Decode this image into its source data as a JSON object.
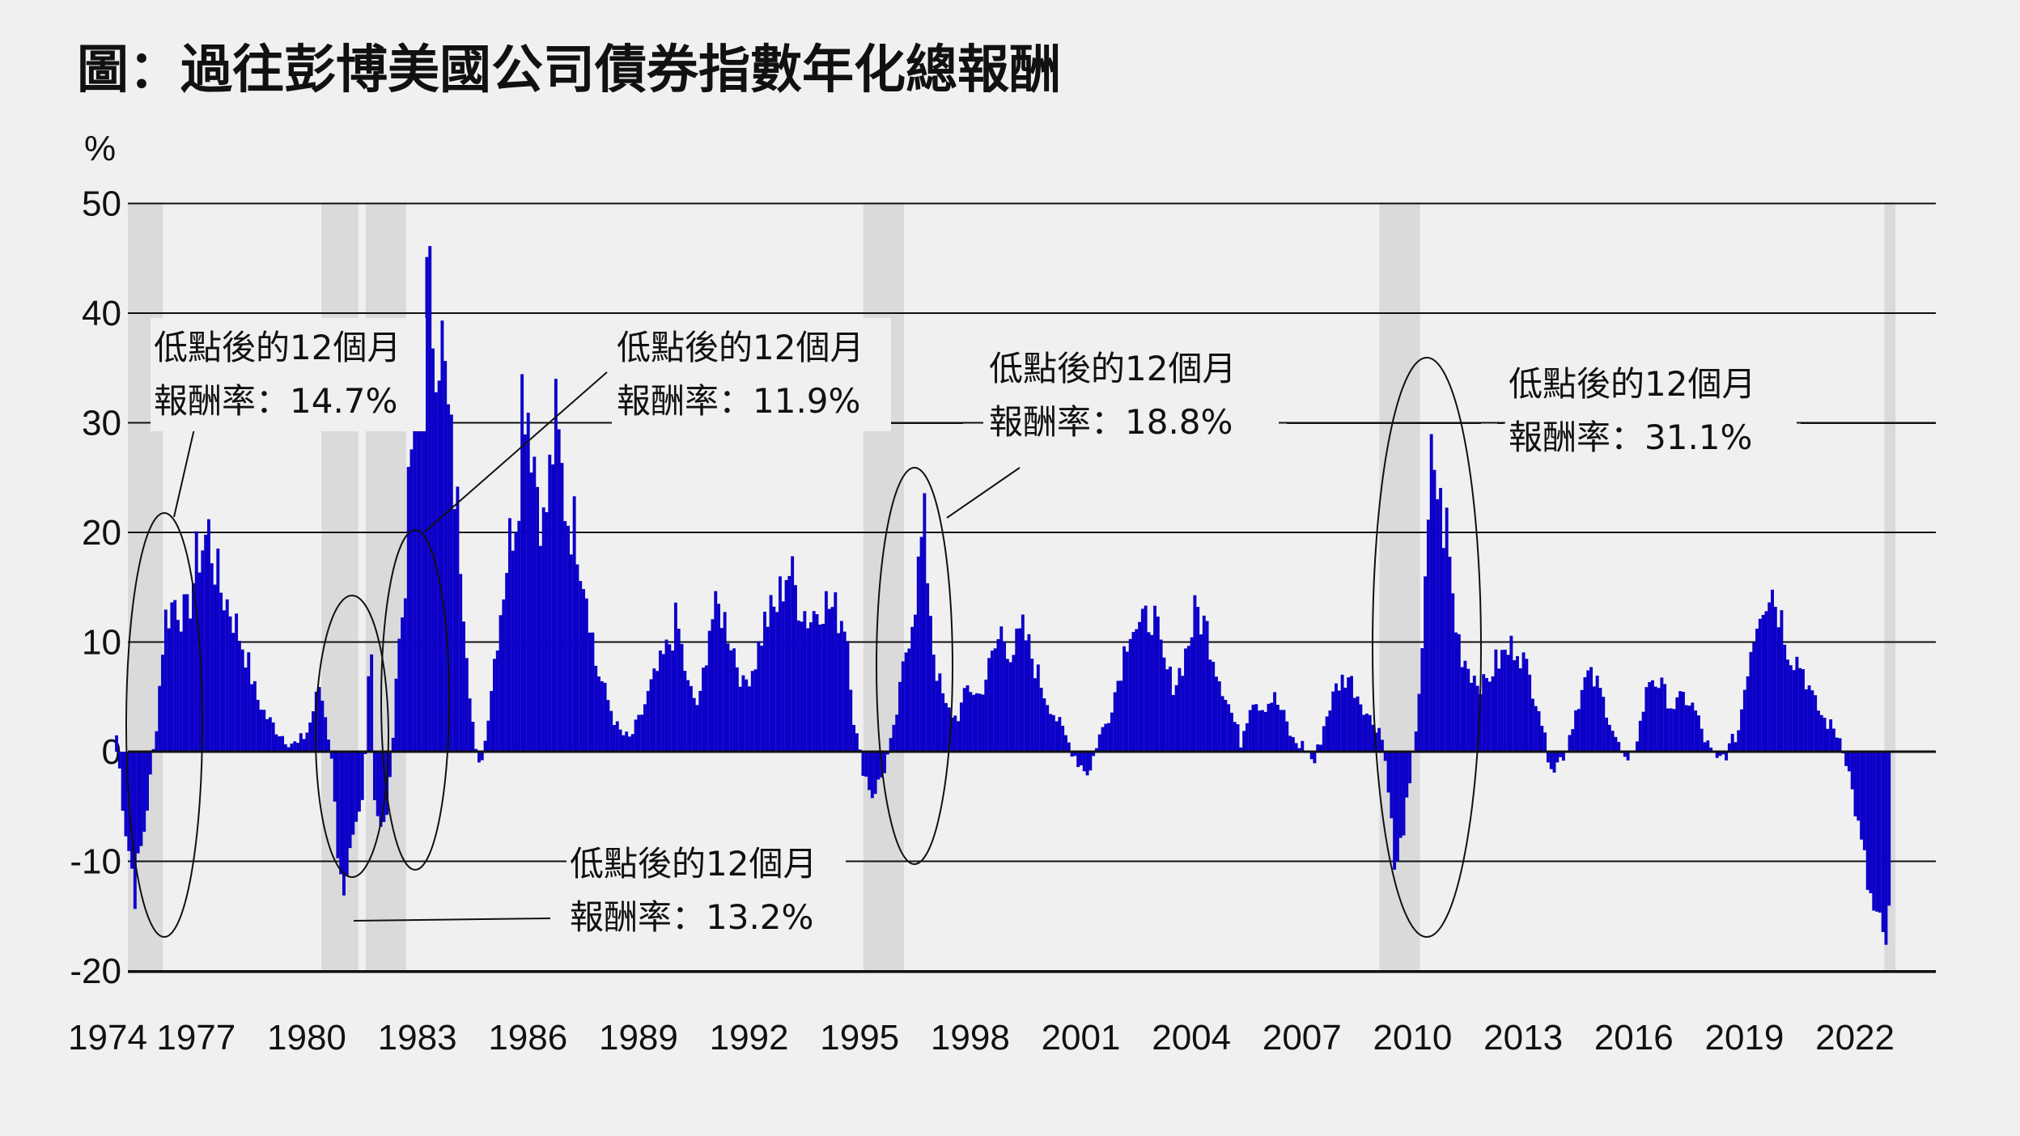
{
  "chart_data": {
    "type": "bar",
    "title": "圖：過往彭博美國公司債券指數年化總報酬",
    "ylabel": "%",
    "ylim": [
      -20,
      50
    ],
    "yticks": [
      "50",
      "40",
      "30",
      "20",
      "10",
      "0",
      "-10",
      "-20"
    ],
    "ytick_values": [
      50,
      40,
      30,
      20,
      10,
      0,
      -10,
      -20
    ],
    "x_tick_labels": [
      "1974",
      "1977",
      "1980",
      "1983",
      "1986",
      "1989",
      "1992",
      "1995",
      "1998",
      "2001",
      "2004",
      "2007",
      "2010",
      "2013",
      "2016",
      "2019",
      "2022"
    ],
    "x_tick_years": [
      1974.8,
      1977.2,
      1980.2,
      1983.2,
      1986.2,
      1989.2,
      1992.2,
      1995.2,
      1998.2,
      2001.2,
      2004.2,
      2007.2,
      2010.2,
      2013.2,
      2016.2,
      2019.2,
      2022.2
    ],
    "grid": true,
    "bar_color": "#0c00c8",
    "shade_color": "#dadada",
    "shaded_periods": [
      [
        1975.3,
        1976.3
      ],
      [
        1980.6,
        1981.6
      ],
      [
        1981.8,
        1982.9
      ],
      [
        1995.3,
        1996.4
      ],
      [
        2009.3,
        2010.4
      ],
      [
        2023.0,
        2023.3
      ]
    ],
    "series_points": [
      [
        1975.0,
        1.5
      ],
      [
        1975.2,
        -6
      ],
      [
        1975.5,
        -12.5
      ],
      [
        1975.8,
        -6
      ],
      [
        1976.1,
        3
      ],
      [
        1976.3,
        12
      ],
      [
        1976.6,
        14
      ],
      [
        1976.9,
        12
      ],
      [
        1977.2,
        18
      ],
      [
        1977.5,
        20
      ],
      [
        1977.8,
        15
      ],
      [
        1978.1,
        13
      ],
      [
        1978.5,
        9
      ],
      [
        1978.8,
        5
      ],
      [
        1979.1,
        3
      ],
      [
        1979.5,
        1.5
      ],
      [
        1979.9,
        0.5
      ],
      [
        1980.2,
        2
      ],
      [
        1980.5,
        6
      ],
      [
        1980.7,
        3
      ],
      [
        1980.9,
        -3
      ],
      [
        1981.0,
        -9
      ],
      [
        1981.1,
        -13
      ],
      [
        1981.2,
        -16
      ],
      [
        1981.3,
        -11
      ],
      [
        1981.5,
        -7
      ],
      [
        1981.7,
        -4
      ],
      [
        1981.8,
        5
      ],
      [
        1981.9,
        12
      ],
      [
        1982.0,
        -4
      ],
      [
        1982.2,
        -8
      ],
      [
        1982.4,
        -4
      ],
      [
        1982.6,
        8
      ],
      [
        1982.8,
        14
      ],
      [
        1983.0,
        28
      ],
      [
        1983.2,
        38
      ],
      [
        1983.4,
        41
      ],
      [
        1983.6,
        40
      ],
      [
        1983.8,
        38
      ],
      [
        1984.0,
        30
      ],
      [
        1984.3,
        20
      ],
      [
        1984.6,
        5
      ],
      [
        1984.8,
        -2
      ],
      [
        1985.0,
        1
      ],
      [
        1985.3,
        10
      ],
      [
        1985.6,
        18
      ],
      [
        1985.9,
        24
      ],
      [
        1986.0,
        33
      ],
      [
        1986.1,
        34
      ],
      [
        1986.3,
        28
      ],
      [
        1986.6,
        20
      ],
      [
        1986.9,
        30
      ],
      [
        1987.2,
        22
      ],
      [
        1987.5,
        20
      ],
      [
        1987.8,
        14
      ],
      [
        1988.0,
        8
      ],
      [
        1988.3,
        5
      ],
      [
        1988.6,
        2
      ],
      [
        1988.9,
        1
      ],
      [
        1989.2,
        3
      ],
      [
        1989.5,
        6
      ],
      [
        1989.9,
        9
      ],
      [
        1990.2,
        12
      ],
      [
        1990.5,
        6
      ],
      [
        1990.8,
        4
      ],
      [
        1991.1,
        12
      ],
      [
        1991.4,
        13
      ],
      [
        1991.7,
        10
      ],
      [
        1992.0,
        6
      ],
      [
        1992.3,
        8
      ],
      [
        1992.6,
        12
      ],
      [
        1992.9,
        13
      ],
      [
        1993.2,
        17
      ],
      [
        1993.5,
        14
      ],
      [
        1993.8,
        12
      ],
      [
        1994.1,
        14
      ],
      [
        1994.4,
        13
      ],
      [
        1994.8,
        12
      ],
      [
        1995.0,
        3
      ],
      [
        1995.2,
        -1
      ],
      [
        1995.5,
        -4
      ],
      [
        1995.8,
        -2
      ],
      [
        1996.1,
        2
      ],
      [
        1996.4,
        9
      ],
      [
        1996.7,
        15
      ],
      [
        1996.9,
        21
      ],
      [
        1997.2,
        8
      ],
      [
        1997.5,
        4
      ],
      [
        1997.8,
        3
      ],
      [
        1998.1,
        6
      ],
      [
        1998.4,
        5
      ],
      [
        1998.7,
        8
      ],
      [
        1999.0,
        11
      ],
      [
        1999.3,
        9
      ],
      [
        1999.6,
        11
      ],
      [
        1999.9,
        8
      ],
      [
        2000.2,
        5
      ],
      [
        2000.5,
        3
      ],
      [
        2000.8,
        1
      ],
      [
        2001.1,
        -1
      ],
      [
        2001.4,
        -2
      ],
      [
        2001.6,
        1
      ],
      [
        2001.9,
        3
      ],
      [
        2002.2,
        7
      ],
      [
        2002.5,
        12
      ],
      [
        2002.8,
        11
      ],
      [
        2003.1,
        13
      ],
      [
        2003.4,
        8
      ],
      [
        2003.7,
        6
      ],
      [
        2004.0,
        9
      ],
      [
        2004.3,
        13
      ],
      [
        2004.6,
        11
      ],
      [
        2004.9,
        7
      ],
      [
        2005.2,
        4
      ],
      [
        2005.5,
        1
      ],
      [
        2005.8,
        5
      ],
      [
        2006.1,
        4
      ],
      [
        2006.4,
        5
      ],
      [
        2006.7,
        3
      ],
      [
        2006.9,
        1
      ],
      [
        2007.2,
        0.5
      ],
      [
        2007.5,
        -1
      ],
      [
        2007.8,
        3
      ],
      [
        2008.1,
        6
      ],
      [
        2008.4,
        7
      ],
      [
        2008.7,
        5
      ],
      [
        2009.0,
        3
      ],
      [
        2009.3,
        2
      ],
      [
        2009.5,
        -3
      ],
      [
        2009.7,
        -12
      ],
      [
        2009.9,
        -7
      ],
      [
        2010.1,
        -3
      ],
      [
        2010.3,
        4
      ],
      [
        2010.5,
        14
      ],
      [
        2010.7,
        28
      ],
      [
        2010.9,
        22
      ],
      [
        2011.1,
        20
      ],
      [
        2011.3,
        12
      ],
      [
        2011.5,
        9
      ],
      [
        2011.8,
        7
      ],
      [
        2012.1,
        6
      ],
      [
        2012.4,
        8
      ],
      [
        2012.7,
        9
      ],
      [
        2013.0,
        10
      ],
      [
        2013.3,
        7
      ],
      [
        2013.6,
        4
      ],
      [
        2013.8,
        0
      ],
      [
        2014.0,
        -1.5
      ],
      [
        2014.3,
        0
      ],
      [
        2014.6,
        4
      ],
      [
        2014.9,
        7
      ],
      [
        2015.2,
        6
      ],
      [
        2015.5,
        3
      ],
      [
        2015.8,
        0
      ],
      [
        2016.0,
        -1.5
      ],
      [
        2016.3,
        2
      ],
      [
        2016.6,
        7
      ],
      [
        2016.9,
        6
      ],
      [
        2017.2,
        4
      ],
      [
        2017.5,
        5
      ],
      [
        2017.8,
        4
      ],
      [
        2018.1,
        1
      ],
      [
        2018.4,
        -1
      ],
      [
        2018.7,
        0
      ],
      [
        2019.0,
        2
      ],
      [
        2019.3,
        9
      ],
      [
        2019.6,
        14
      ],
      [
        2019.9,
        15
      ],
      [
        2020.1,
        13
      ],
      [
        2020.4,
        9
      ],
      [
        2020.7,
        8
      ],
      [
        2021.0,
        5
      ],
      [
        2021.3,
        3
      ],
      [
        2021.6,
        2
      ],
      [
        2021.8,
        1
      ],
      [
        2022.0,
        -2
      ],
      [
        2022.3,
        -8
      ],
      [
        2022.6,
        -14
      ],
      [
        2022.9,
        -18
      ],
      [
        2023.1,
        -16
      ]
    ],
    "annotations": [
      {
        "line1": "低點後的12個月",
        "line2": "報酬率：14.7%"
      },
      {
        "line1": "低點後的12個月",
        "line2": "報酬率：13.2%"
      },
      {
        "line1": "低點後的12個月",
        "line2": "報酬率：11.9%"
      },
      {
        "line1": "低點後的12個月",
        "line2": "報酬率：18.8%"
      },
      {
        "line1": "低點後的12個月",
        "line2": "報酬率：31.1%"
      }
    ]
  }
}
